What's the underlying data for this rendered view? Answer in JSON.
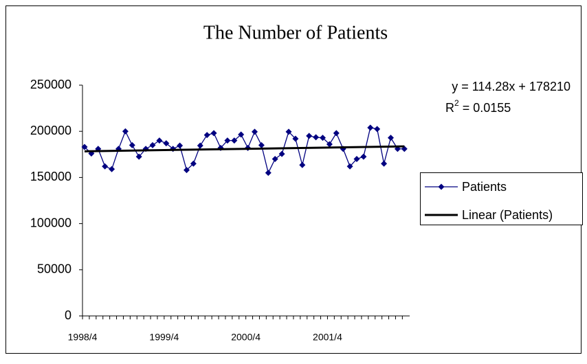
{
  "chart_data": {
    "type": "line",
    "title": "The Number of Patients",
    "categories": [
      "1998/4",
      null,
      null,
      null,
      null,
      null,
      null,
      null,
      null,
      null,
      null,
      null,
      "1999/4",
      null,
      null,
      null,
      null,
      null,
      null,
      null,
      null,
      null,
      null,
      null,
      "2000/4",
      null,
      null,
      null,
      null,
      null,
      null,
      null,
      null,
      null,
      null,
      null,
      "2001/4",
      null,
      null,
      null,
      null,
      null,
      null,
      null,
      null,
      null,
      null,
      null
    ],
    "series": [
      {
        "name": "Patients",
        "color": "#000080",
        "values": [
          183000,
          176000,
          181000,
          162000,
          159000,
          181000,
          200000,
          185000,
          172500,
          181000,
          185000,
          190000,
          187000,
          181000,
          184500,
          158000,
          165000,
          184500,
          196000,
          198000,
          182000,
          190000,
          190000,
          196500,
          182000,
          199500,
          185000,
          155000,
          170000,
          175500,
          199500,
          192000,
          163500,
          195000,
          193500,
          193000,
          186000,
          198000,
          181000,
          162000,
          170000,
          172500,
          204000,
          202500,
          165000,
          193000,
          181000,
          181000
        ]
      }
    ],
    "trendline": {
      "name": "Linear (Patients)",
      "color": "#000000",
      "slope": 114.28,
      "intercept": 178210,
      "equation": "y = 114.28x + 178210",
      "r2": {
        "symbol": "R",
        "exponent": "2",
        "text": " = 0.0155"
      }
    },
    "ylim": [
      0,
      250000
    ],
    "yticks": [
      0,
      50000,
      100000,
      150000,
      200000,
      250000
    ],
    "legend": "right"
  }
}
